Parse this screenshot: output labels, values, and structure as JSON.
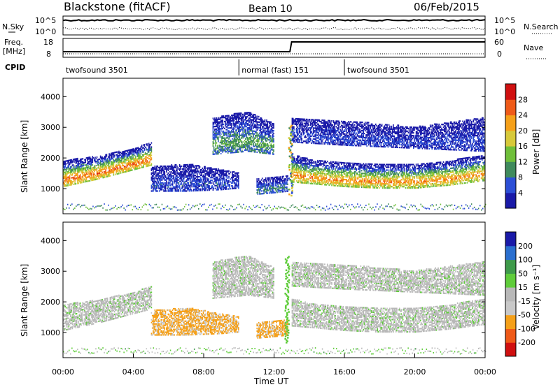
{
  "header": {
    "title": "Blackstone (fitACF)",
    "beam": "Beam 10",
    "date": "06/Feb/2015"
  },
  "left_labels": {
    "nsky": "N.Sky",
    "freq": "Freq.",
    "freq_unit": "[MHz]",
    "cpid": "CPID"
  },
  "right_labels": {
    "nsearch": "N.Search",
    "nave": "Nave"
  },
  "colors": {
    "power": [
      "#1a1aa8",
      "#2c4fd6",
      "#3f8a5c",
      "#6fbf3a",
      "#d7c93a",
      "#f5a019",
      "#ef5a18",
      "#d01010"
    ],
    "velocity": [
      "#d01010",
      "#ef5a18",
      "#f5a019",
      "#c8c8c8",
      "#b8b8b8",
      "#5fcc3a",
      "#3e9a4a",
      "#2a6fcf",
      "#1a1aa8"
    ]
  },
  "chart_data": [
    {
      "type": "line",
      "name": "noise-panel",
      "y_tick_labels": [
        "10^5",
        "10^0"
      ],
      "right_tick_labels": [
        "10^5",
        "10^0"
      ],
      "series": [
        {
          "name": "N.Sky",
          "style": "solid"
        },
        {
          "name": "N.Search",
          "style": "dotted"
        }
      ]
    },
    {
      "type": "line",
      "name": "freq-panel",
      "y_tick_labels": [
        "18",
        "8"
      ],
      "right_tick_labels": [
        "60",
        "0"
      ],
      "series": [
        {
          "name": "Freq.",
          "style": "solid"
        },
        {
          "name": "Nave",
          "style": "dotted"
        }
      ]
    },
    {
      "type": "table",
      "name": "cpid-segments",
      "segments": [
        {
          "label": "twofsound 3501",
          "start_hour": 0,
          "end_hour": 10
        },
        {
          "label": "normal (fast) 151",
          "start_hour": 10,
          "end_hour": 16
        },
        {
          "label": "twofsound 3501",
          "start_hour": 16,
          "end_hour": 24
        }
      ]
    },
    {
      "type": "heatmap",
      "name": "power-panel",
      "ylabel": "Slant Range [km]",
      "y_ticks": [
        1000,
        2000,
        3000,
        4000
      ],
      "ylim": [
        180,
        4600
      ],
      "xlim": [
        0,
        24
      ],
      "colorbar_label": "Power [dB]",
      "colorbar_ticks": [
        4,
        8,
        12,
        16,
        20,
        24,
        28
      ],
      "colorbar_range": [
        0,
        32
      ],
      "bands": [
        {
          "x": [
            0,
            2,
            4,
            5
          ],
          "y_low": [
            1050,
            1300,
            1600,
            1750
          ],
          "y_high": [
            1900,
            2050,
            2300,
            2500
          ],
          "peak": 26
        },
        {
          "x": [
            5,
            7,
            9,
            10
          ],
          "y_low": [
            900,
            900,
            950,
            1000
          ],
          "y_high": [
            1700,
            1800,
            1600,
            1500
          ],
          "peak": 6
        },
        {
          "x": [
            8.5,
            10.5,
            12
          ],
          "y_low": [
            2100,
            2200,
            2100
          ],
          "y_high": [
            3300,
            3500,
            3100
          ],
          "peak": 12
        },
        {
          "x": [
            11,
            12,
            12.8
          ],
          "y_low": [
            800,
            850,
            900
          ],
          "y_high": [
            1300,
            1350,
            1400
          ],
          "peak": 10
        },
        {
          "x": [
            13,
            14,
            16,
            18,
            20,
            22,
            24
          ],
          "y_low": [
            1200,
            1150,
            1050,
            1000,
            1000,
            1100,
            1250
          ],
          "y_high": [
            2100,
            1950,
            1850,
            1800,
            1800,
            1900,
            2100
          ],
          "peak": 24
        },
        {
          "x": [
            13,
            16,
            20,
            24
          ],
          "y_low": [
            2500,
            2400,
            2300,
            2200
          ],
          "y_high": [
            3300,
            3200,
            3000,
            3300
          ],
          "peak": 5
        }
      ],
      "spike": {
        "x": 12.9,
        "y_low": 800,
        "y_high": 3100
      }
    },
    {
      "type": "heatmap",
      "name": "velocity-panel",
      "ylabel": "Slant Range [km]",
      "xlabel": "Time UT",
      "y_ticks": [
        1000,
        2000,
        3000,
        4000
      ],
      "ylim": [
        180,
        4600
      ],
      "xlim": [
        0,
        24
      ],
      "x_tick_labels": [
        "00:00",
        "04:00",
        "08:00",
        "12:00",
        "16:00",
        "20:00",
        "00:00"
      ],
      "x_ticks": [
        0,
        4,
        8,
        12,
        16,
        20,
        24
      ],
      "colorbar_label": "Velocity [m s^-1]",
      "colorbar_ticks": [
        200,
        100,
        50,
        15,
        -15,
        -50,
        -100,
        -200
      ],
      "bands": [
        {
          "x": [
            0,
            2,
            4,
            5
          ],
          "y_low": [
            1050,
            1300,
            1600,
            1750
          ],
          "y_high": [
            1900,
            2050,
            2300,
            2500
          ],
          "vel": 0
        },
        {
          "x": [
            5,
            7,
            9,
            10
          ],
          "y_low": [
            900,
            900,
            950,
            1000
          ],
          "y_high": [
            1700,
            1800,
            1600,
            1500
          ],
          "vel": -60
        },
        {
          "x": [
            8.5,
            10.5,
            12
          ],
          "y_low": [
            2100,
            2200,
            2100
          ],
          "y_high": [
            3300,
            3500,
            3100
          ],
          "vel": 0
        },
        {
          "x": [
            11,
            12,
            12.8
          ],
          "y_low": [
            800,
            850,
            900
          ],
          "y_high": [
            1300,
            1350,
            1400
          ],
          "vel": -60
        },
        {
          "x": [
            13,
            14,
            16,
            18,
            20,
            22,
            24
          ],
          "y_low": [
            1200,
            1150,
            1050,
            1000,
            1000,
            1100,
            1250
          ],
          "y_high": [
            2100,
            1950,
            1850,
            1800,
            1800,
            1900,
            2100
          ],
          "vel": 0
        },
        {
          "x": [
            13,
            16,
            20,
            24
          ],
          "y_low": [
            2500,
            2400,
            2300,
            2200
          ],
          "y_high": [
            3300,
            3200,
            3000,
            3300
          ],
          "vel": 0
        }
      ],
      "spike": {
        "x": 12.7,
        "y_low": 700,
        "y_high": 3500,
        "vel": 40
      }
    }
  ]
}
